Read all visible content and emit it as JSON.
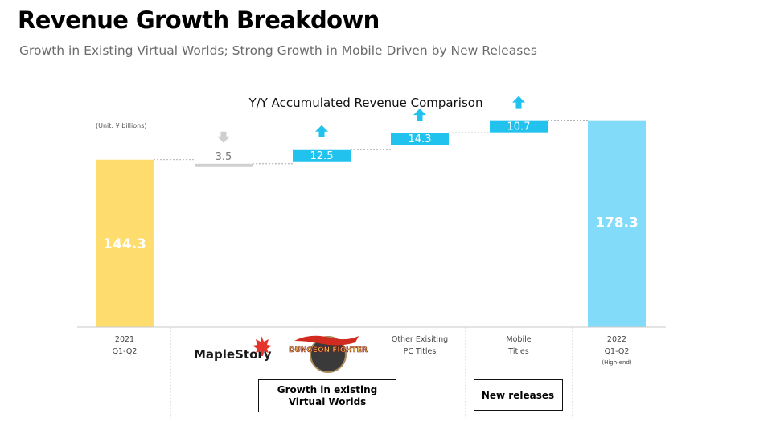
{
  "page": {
    "title": "Revenue Growth Breakdown",
    "subtitle": "Growth in Existing Virtual Worlds; Strong Growth in Mobile Driven by New Releases"
  },
  "chart_data": {
    "type": "bar",
    "subtype": "waterfall",
    "title": "Y/Y Accumulated Revenue Comparison",
    "unit": "(Unit: ¥ billions)",
    "ylim": [
      0,
      185
    ],
    "grid": false,
    "legend": "none",
    "bars": [
      {
        "kind": "total",
        "value": 144.3,
        "label": "144.3",
        "category": [
          "2021",
          "Q1-Q2"
        ],
        "color": "#ffdc6e"
      },
      {
        "kind": "delta",
        "direction": "down",
        "value": -3.5,
        "label": "3.5",
        "category_logo": "MapleStory",
        "color": "#d0d0d0"
      },
      {
        "kind": "delta",
        "direction": "up",
        "value": 12.5,
        "label": "12.5",
        "category_logo": "Dungeon Fighter",
        "color": "#22c2ee"
      },
      {
        "kind": "delta",
        "direction": "up",
        "value": 14.3,
        "label": "14.3",
        "category": [
          "Other Exisiting",
          "PC Titles"
        ],
        "color": "#22c2ee"
      },
      {
        "kind": "delta",
        "direction": "up",
        "value": 10.7,
        "label": "10.7",
        "category": [
          "Mobile",
          "Titles"
        ],
        "color": "#22c2ee"
      },
      {
        "kind": "total",
        "value": 178.3,
        "label": "178.3",
        "category": [
          "2022",
          "Q1-Q2",
          "(High-end)"
        ],
        "color": "#83dbfa"
      }
    ],
    "groups": [
      {
        "label": [
          "Growth in existing",
          "Virtual Worlds"
        ]
      },
      {
        "label": [
          "New releases"
        ]
      }
    ],
    "logos": {
      "maplestory": "MapleStory",
      "dungeon_fighter": "DUNGEON FIGHTER"
    },
    "colors": {
      "up_arrow": "#22c2ee",
      "down_arrow": "#cfcfcf",
      "connector": "#9a9a9a",
      "axis": "#c8c8c8"
    }
  }
}
